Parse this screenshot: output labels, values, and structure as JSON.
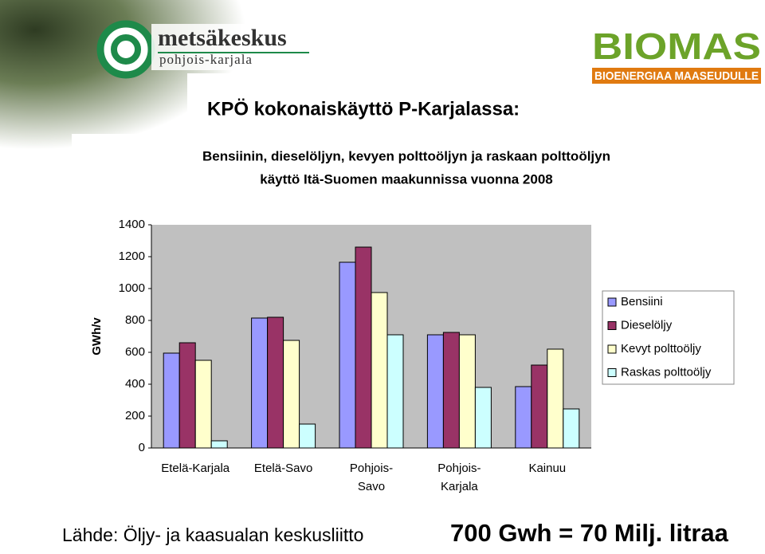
{
  "logos": {
    "left_name": "metsäkeskus",
    "left_region": "pohjois-karjala",
    "right_name": "BIOMAS",
    "right_tagline": "BIOENERGIAA MAASEUDULLE"
  },
  "slide_title": "KPÖ kokonaiskäyttö P-Karjalassa:",
  "chart_data": {
    "type": "bar",
    "title": "Bensiinin, dieselöljyn, kevyen polttoöljyn ja raskaan polttoöljyn",
    "subtitle": "käyttö Itä-Suomen maakunnissa vuonna 2008",
    "y_label": "GWh/v",
    "categories": [
      "Etelä-Karjala",
      "Etelä-Savo",
      "Pohjois-\nSavo",
      "Pohjois-\nKarjala",
      "Kainuu"
    ],
    "series": [
      {
        "name": "Bensiini",
        "color": "#9999ff",
        "values": [
          595,
          815,
          1165,
          710,
          385
        ]
      },
      {
        "name": "Dieselöljy",
        "color": "#993366",
        "values": [
          660,
          820,
          1260,
          725,
          520
        ]
      },
      {
        "name": "Kevyt polttoöljy",
        "color": "#ffffcc",
        "values": [
          550,
          675,
          975,
          710,
          620
        ]
      },
      {
        "name": "Raskas polttoöljy",
        "color": "#ccffff",
        "values": [
          45,
          150,
          710,
          380,
          245
        ]
      }
    ],
    "ylim": [
      0,
      1400
    ],
    "yticks": [
      0,
      200,
      400,
      600,
      800,
      1000,
      1200,
      1400
    ],
    "grid": false,
    "legend": "right",
    "plot_background": "#c0c0c0"
  },
  "footer": {
    "source": "Lähde: Öljy- ja kaasualan keskusliitto",
    "note": "700 Gwh = 70 Milj. litraa"
  }
}
